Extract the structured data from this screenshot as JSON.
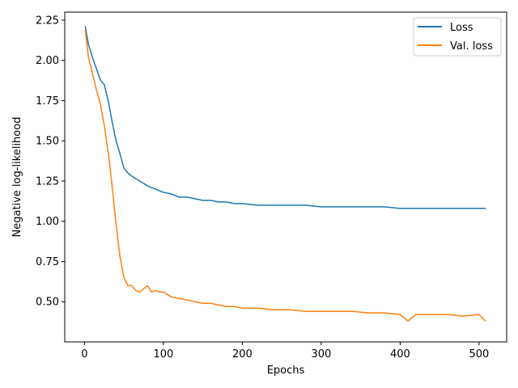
{
  "chart_data": {
    "type": "line",
    "title": "",
    "xlabel": "Epochs",
    "ylabel": "Negative log-likelihood",
    "xlim": [
      -25,
      535
    ],
    "ylim": [
      0.25,
      2.3
    ],
    "x_ticks": [
      0,
      100,
      200,
      300,
      400,
      500
    ],
    "y_ticks": [
      0.5,
      0.75,
      1.0,
      1.25,
      1.5,
      1.75,
      2.0,
      2.25
    ],
    "legend_position": "top-right",
    "grid": false,
    "series": [
      {
        "name": "Loss",
        "color": "#1f77b4",
        "x": [
          1,
          5,
          10,
          15,
          20,
          25,
          30,
          35,
          40,
          45,
          50,
          55,
          60,
          70,
          80,
          90,
          100,
          110,
          120,
          130,
          140,
          150,
          160,
          170,
          180,
          190,
          200,
          220,
          240,
          260,
          280,
          300,
          320,
          340,
          360,
          380,
          400,
          420,
          440,
          460,
          480,
          500,
          508
        ],
        "values": [
          2.21,
          2.1,
          2.02,
          1.95,
          1.88,
          1.85,
          1.75,
          1.62,
          1.5,
          1.42,
          1.33,
          1.3,
          1.28,
          1.25,
          1.22,
          1.2,
          1.18,
          1.17,
          1.15,
          1.15,
          1.14,
          1.13,
          1.13,
          1.12,
          1.12,
          1.11,
          1.11,
          1.1,
          1.1,
          1.1,
          1.1,
          1.09,
          1.09,
          1.09,
          1.09,
          1.09,
          1.08,
          1.08,
          1.08,
          1.08,
          1.08,
          1.08,
          1.08
        ]
      },
      {
        "name": "Val. loss",
        "color": "#ff7f0e",
        "x": [
          1,
          5,
          10,
          15,
          20,
          25,
          30,
          35,
          40,
          45,
          50,
          55,
          60,
          65,
          70,
          75,
          80,
          85,
          90,
          95,
          100,
          110,
          120,
          130,
          140,
          150,
          160,
          170,
          180,
          190,
          200,
          220,
          240,
          260,
          280,
          300,
          320,
          340,
          360,
          380,
          400,
          410,
          420,
          440,
          460,
          480,
          500,
          508
        ],
        "values": [
          2.19,
          2.02,
          1.92,
          1.82,
          1.73,
          1.6,
          1.43,
          1.22,
          0.98,
          0.78,
          0.65,
          0.6,
          0.6,
          0.57,
          0.56,
          0.58,
          0.6,
          0.56,
          0.57,
          0.56,
          0.56,
          0.53,
          0.52,
          0.51,
          0.5,
          0.49,
          0.49,
          0.48,
          0.47,
          0.47,
          0.46,
          0.46,
          0.45,
          0.45,
          0.44,
          0.44,
          0.44,
          0.44,
          0.43,
          0.43,
          0.42,
          0.38,
          0.42,
          0.42,
          0.42,
          0.41,
          0.42,
          0.38
        ]
      }
    ]
  }
}
